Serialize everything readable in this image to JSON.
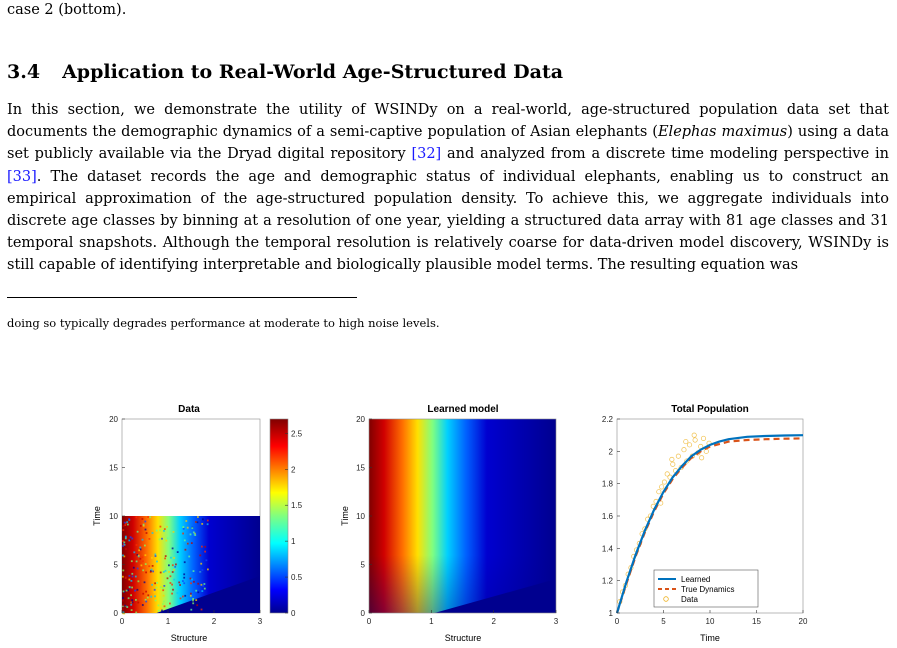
{
  "top_caption": "case 2 (bottom).",
  "section": {
    "number": "3.4",
    "title": "Application to Real-World Age-Structured Data"
  },
  "paragraph": {
    "seg1": "In this section, we demonstrate the utility of WSINDy on a real-world, age-structured population data set that documents the demographic dynamics of a semi-captive population of Asian elephants (",
    "species": "Elephas maximus",
    "seg2": ") using a data set publicly available via the Dryad digital repository ",
    "ref1": "[32]",
    "seg3": " and analyzed from a discrete time modeling perspective in ",
    "ref2": "[33]",
    "seg4": ". The dataset records the age and demographic status of individual elephants, enabling us to construct an empirical approximation of the age-structured population density. To achieve this, we aggregate individuals into discrete age classes by binning at a resolution of one year, yielding a structured data array with 81 age classes and 31 temporal snapshots. Although the temporal resolution is relatively coarse for data-driven model discovery, WSINDy is still capable of identifying interpretable and biologically plausible model terms. The resulting equation was"
  },
  "footnote": "doing so typically degrades performance at moderate to high noise levels.",
  "chart_data": [
    {
      "type": "heatmap",
      "title": "Data",
      "xlabel": "Structure",
      "ylabel": "Time",
      "xlim": [
        0,
        3
      ],
      "ylim": [
        0,
        20
      ],
      "xticks": [
        "0",
        "1",
        "2",
        "3"
      ],
      "yticks": [
        "0",
        "5",
        "10",
        "15",
        "20"
      ],
      "data_extent": {
        "x": [
          0,
          3
        ],
        "t": [
          0,
          10
        ]
      },
      "colorbar": {
        "min": 0,
        "max": 2.7,
        "ticks": [
          "0",
          "0.5",
          "1",
          "1.5",
          "2",
          "2.5"
        ]
      }
    },
    {
      "type": "heatmap",
      "title": "Learned model",
      "xlabel": "Structure",
      "ylabel": "Time",
      "xlim": [
        0,
        3
      ],
      "ylim": [
        0,
        20
      ],
      "xticks": [
        "0",
        "1",
        "2",
        "3"
      ],
      "yticks": [
        "0",
        "5",
        "10",
        "15",
        "20"
      ]
    },
    {
      "type": "line",
      "title": "Total Population",
      "xlabel": "Time",
      "ylabel": "",
      "xlim": [
        0,
        20
      ],
      "ylim": [
        1,
        2.2
      ],
      "xticks": [
        "0",
        "5",
        "10",
        "15",
        "20"
      ],
      "yticks": [
        "1",
        "1.2",
        "1.4",
        "1.6",
        "1.8",
        "2",
        "2.2"
      ],
      "legend_position": "bottom-right",
      "series": [
        {
          "name": "Learned",
          "color": "#0072bd",
          "style": "solid",
          "x": [
            0,
            1,
            2,
            3,
            4,
            5,
            6,
            7,
            8,
            9,
            10,
            11,
            12,
            14,
            16,
            18,
            20
          ],
          "y": [
            1.0,
            1.19,
            1.36,
            1.51,
            1.64,
            1.75,
            1.84,
            1.91,
            1.97,
            2.01,
            2.04,
            2.06,
            2.075,
            2.09,
            2.095,
            2.098,
            2.1
          ]
        },
        {
          "name": "True Dynamics",
          "color": "#d95319",
          "style": "dashed",
          "x": [
            0,
            1,
            2,
            3,
            4,
            5,
            6,
            7,
            8,
            9,
            10,
            11,
            12,
            14,
            16,
            18,
            20
          ],
          "y": [
            1.0,
            1.18,
            1.35,
            1.5,
            1.63,
            1.74,
            1.83,
            1.9,
            1.96,
            2.0,
            2.03,
            2.045,
            2.06,
            2.07,
            2.075,
            2.078,
            2.08
          ]
        },
        {
          "name": "Data",
          "color": "#edb120",
          "style": "marker",
          "x": [
            0.3,
            0.6,
            0.9,
            1.2,
            1.5,
            1.8,
            2.1,
            2.4,
            2.7,
            3.0,
            3.3,
            3.6,
            3.9,
            4.2,
            4.5,
            4.8,
            5.1,
            5.4,
            5.7,
            6.0,
            6.3,
            6.6,
            6.9,
            7.2,
            7.5,
            7.8,
            8.1,
            8.4,
            8.7,
            9.0,
            9.3,
            9.6,
            9.9,
            4.7,
            5.9,
            7.4,
            8.3,
            9.1
          ],
          "y": [
            1.07,
            1.13,
            1.17,
            1.24,
            1.28,
            1.35,
            1.39,
            1.43,
            1.49,
            1.52,
            1.58,
            1.6,
            1.66,
            1.69,
            1.75,
            1.78,
            1.81,
            1.86,
            1.84,
            1.92,
            1.88,
            1.97,
            1.9,
            2.01,
            1.94,
            2.04,
            1.97,
            2.07,
            1.99,
            2.03,
            2.08,
            2.0,
            2.05,
            1.68,
            1.95,
            2.06,
            2.1,
            1.96
          ]
        }
      ]
    }
  ]
}
